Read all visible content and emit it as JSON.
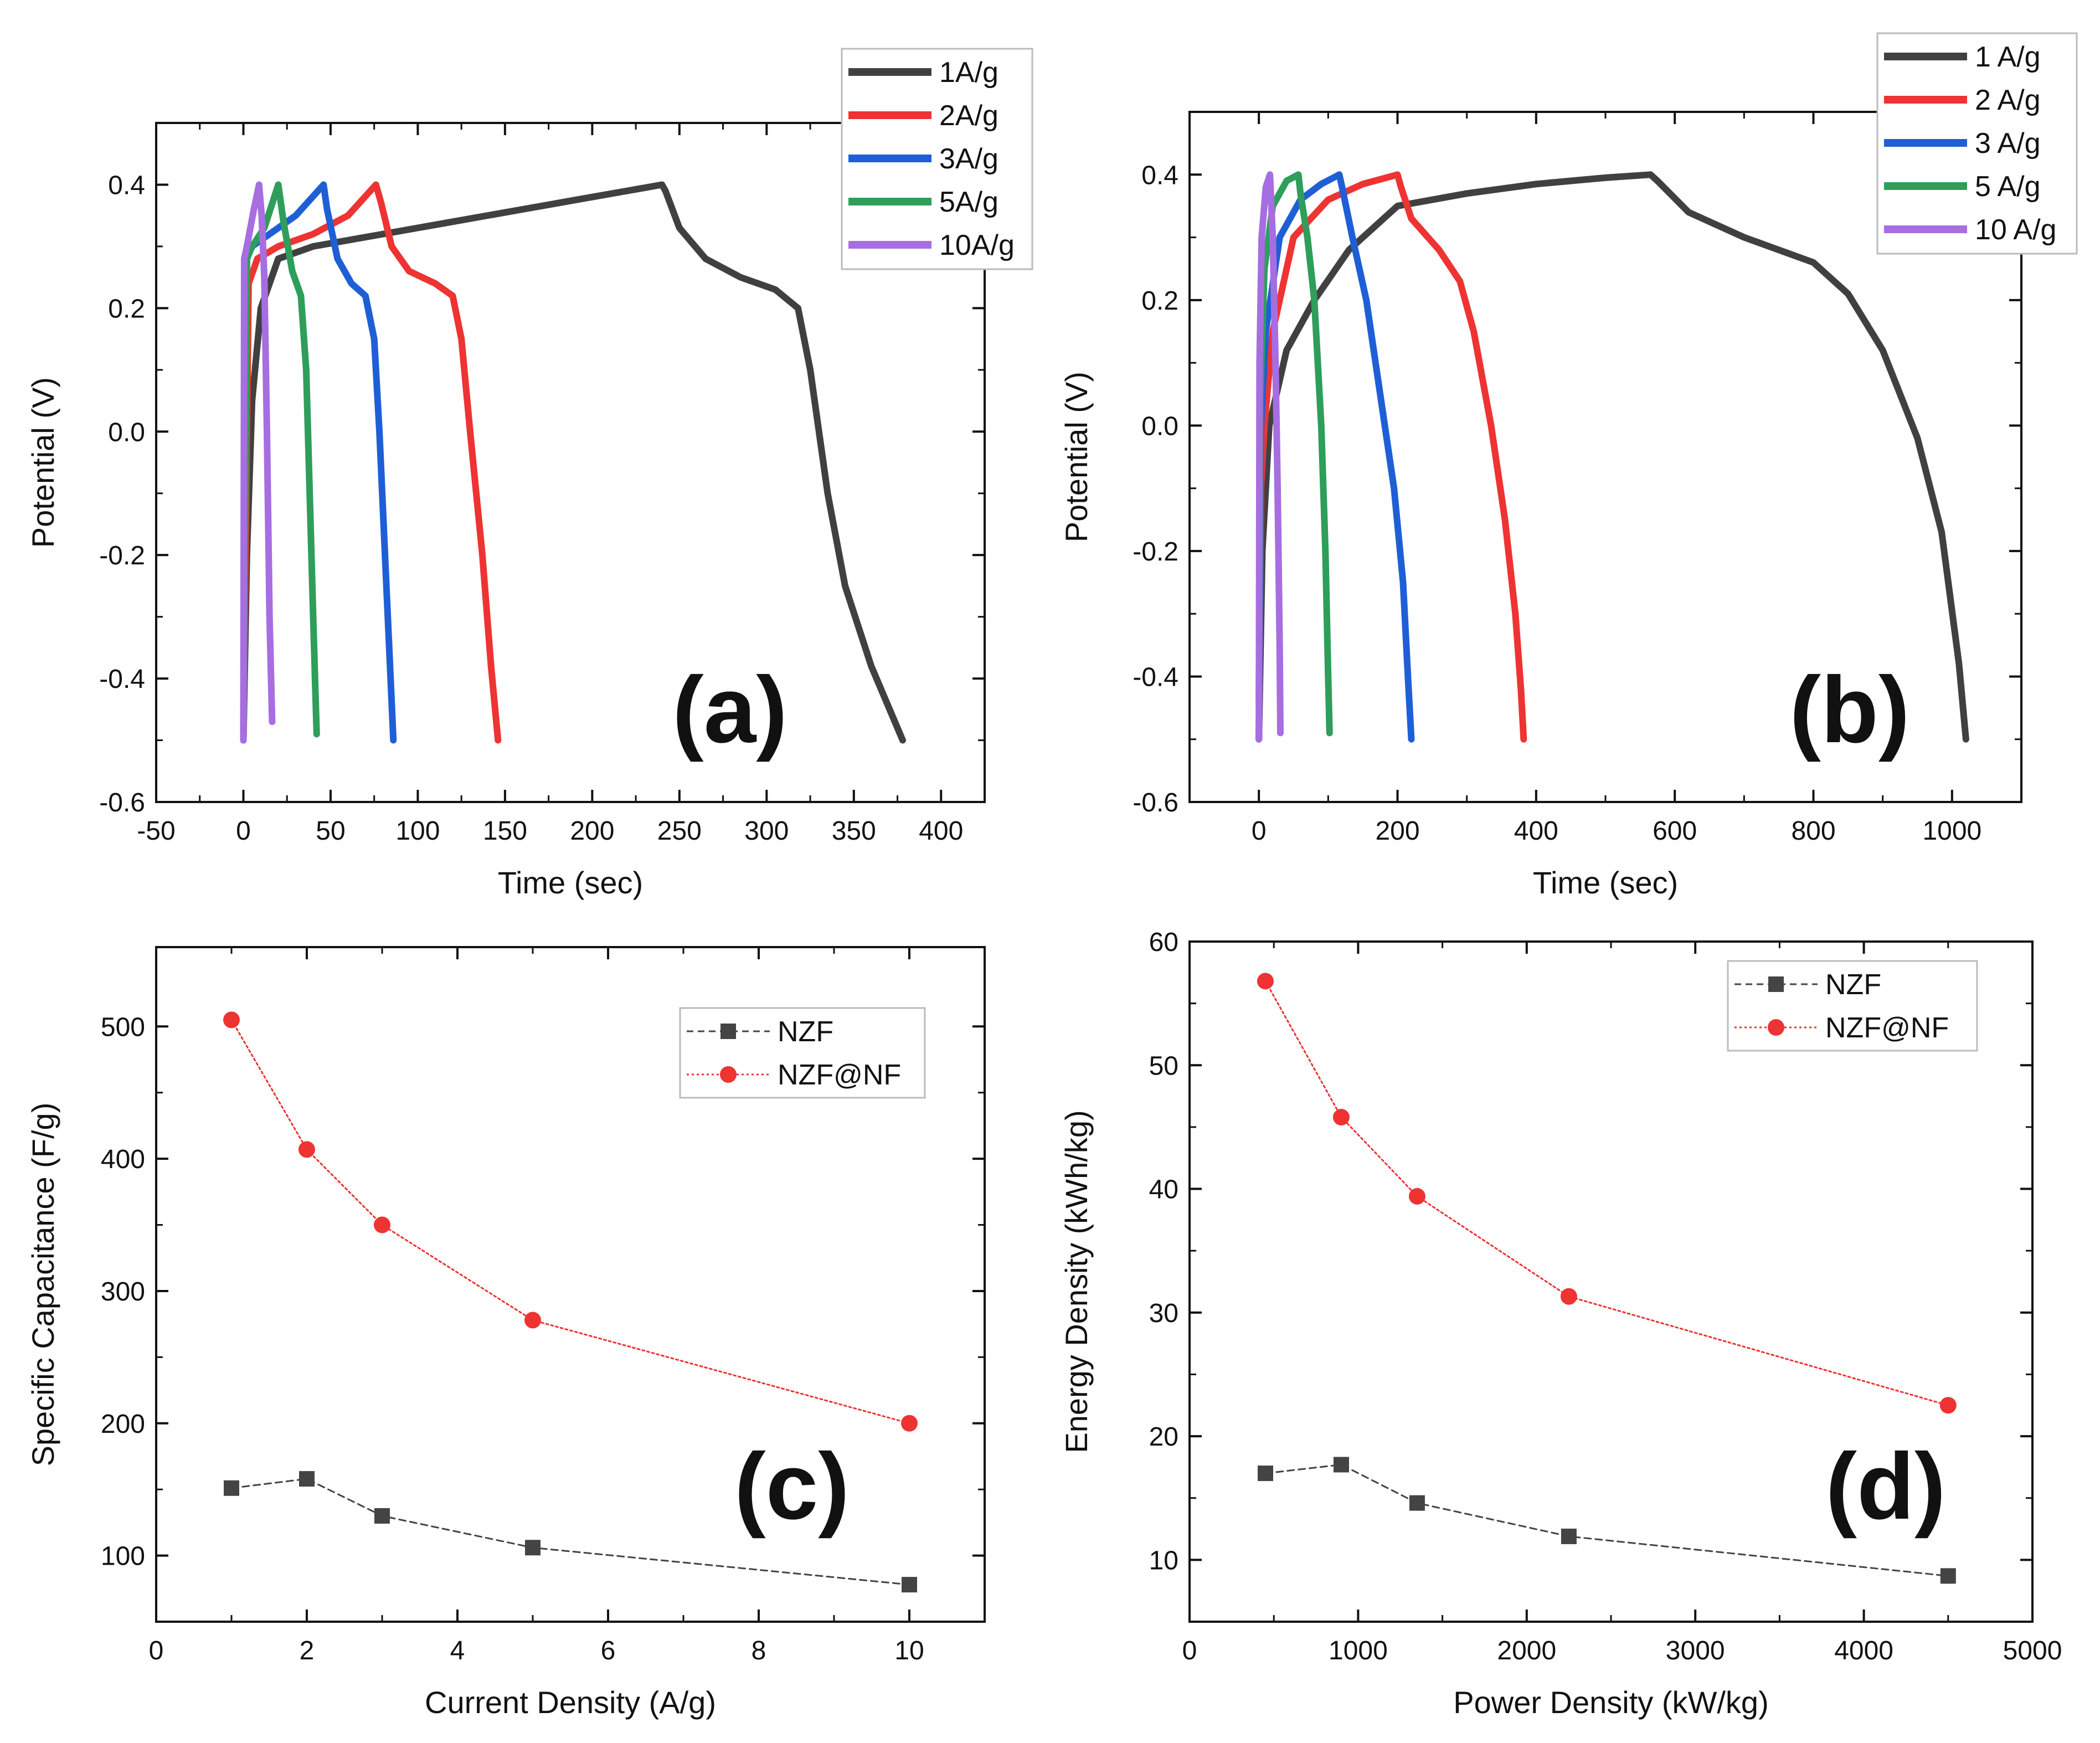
{
  "chart_data": [
    {
      "panel": "a",
      "type": "line",
      "panel_label": "(a)",
      "xlabel": "Time (sec)",
      "ylabel": "Potential (V)",
      "xlim": [
        -50,
        425
      ],
      "ylim": [
        -0.6,
        0.5
      ],
      "xticks": [
        -50,
        0,
        50,
        100,
        150,
        200,
        250,
        300,
        350,
        400
      ],
      "yticks": [
        -0.6,
        -0.4,
        -0.2,
        0.0,
        0.2,
        0.4
      ],
      "ytick_labels": [
        "-0.6",
        "-0.4",
        "-0.2",
        "0.0",
        "0.2",
        "0.4"
      ],
      "grid": false,
      "legend_position": "top-right",
      "series": [
        {
          "name": "1A/g",
          "color": "#404040",
          "x": [
            0,
            2,
            5,
            10,
            20,
            40,
            80,
            120,
            160,
            200,
            240,
            242,
            250,
            265,
            285,
            305,
            318,
            325,
            335,
            345,
            360,
            378
          ],
          "y": [
            -0.5,
            -0.2,
            0.05,
            0.2,
            0.28,
            0.3,
            0.32,
            0.34,
            0.36,
            0.38,
            0.4,
            0.39,
            0.33,
            0.28,
            0.25,
            0.23,
            0.2,
            0.1,
            -0.1,
            -0.25,
            -0.38,
            -0.5
          ]
        },
        {
          "name": "2A/g",
          "color": "#ee3333",
          "x": [
            0,
            3,
            8,
            20,
            40,
            60,
            76,
            79,
            85,
            95,
            110,
            120,
            125,
            130,
            137,
            142,
            146
          ],
          "y": [
            -0.5,
            0.24,
            0.28,
            0.3,
            0.32,
            0.35,
            0.4,
            0.37,
            0.3,
            0.26,
            0.24,
            0.22,
            0.15,
            0.0,
            -0.2,
            -0.38,
            -0.5
          ]
        },
        {
          "name": "3A/g",
          "color": "#1f5fd6",
          "x": [
            0,
            2,
            5,
            15,
            30,
            46,
            48,
            54,
            62,
            70,
            75,
            78,
            82,
            86
          ],
          "y": [
            -0.5,
            0.28,
            0.3,
            0.32,
            0.35,
            0.4,
            0.36,
            0.28,
            0.24,
            0.22,
            0.15,
            0.0,
            -0.25,
            -0.5
          ]
        },
        {
          "name": "5A/g",
          "color": "#2e9e5a",
          "x": [
            0,
            2,
            5,
            12,
            20,
            23,
            28,
            33,
            36,
            38,
            40,
            42
          ],
          "y": [
            -0.5,
            0.28,
            0.3,
            0.33,
            0.4,
            0.34,
            0.26,
            0.22,
            0.1,
            -0.1,
            -0.3,
            -0.49
          ]
        },
        {
          "name": "10A/g",
          "color": "#a66ee0",
          "x": [
            0,
            0.5,
            2,
            6,
            9,
            10.5,
            12,
            13.5,
            15,
            16.5
          ],
          "y": [
            -0.5,
            0.28,
            0.3,
            0.36,
            0.4,
            0.35,
            0.25,
            0.0,
            -0.3,
            -0.47
          ]
        }
      ]
    },
    {
      "panel": "b",
      "type": "line",
      "panel_label": "(b)",
      "xlabel": "Time (sec)",
      "ylabel": "Potential (V)",
      "xlim": [
        -100,
        1100
      ],
      "ylim": [
        -0.6,
        0.5
      ],
      "xticks": [
        0,
        200,
        400,
        600,
        800,
        1000
      ],
      "yticks": [
        -0.6,
        -0.4,
        -0.2,
        0.0,
        0.2,
        0.4
      ],
      "ytick_labels": [
        "-0.6",
        "-0.4",
        "-0.2",
        "0.0",
        "0.2",
        "0.4"
      ],
      "grid": false,
      "legend_position": "top-right",
      "series": [
        {
          "name": "1 A/g",
          "color": "#404040",
          "x": [
            0,
            5,
            15,
            40,
            80,
            130,
            200,
            300,
            400,
            500,
            565,
            575,
            620,
            700,
            800,
            850,
            900,
            950,
            985,
            1010,
            1020
          ],
          "y": [
            -0.5,
            -0.2,
            0.0,
            0.12,
            0.2,
            0.28,
            0.35,
            0.37,
            0.385,
            0.395,
            0.4,
            0.39,
            0.34,
            0.3,
            0.26,
            0.21,
            0.12,
            -0.02,
            -0.17,
            -0.38,
            -0.5
          ]
        },
        {
          "name": "2 A/g",
          "color": "#ee3333",
          "x": [
            0,
            3,
            8,
            20,
            50,
            100,
            150,
            200,
            205,
            220,
            260,
            290,
            310,
            335,
            355,
            370,
            378,
            382
          ],
          "y": [
            -0.5,
            -0.1,
            0.0,
            0.15,
            0.3,
            0.36,
            0.385,
            0.4,
            0.38,
            0.33,
            0.28,
            0.23,
            0.15,
            0.0,
            -0.15,
            -0.3,
            -0.42,
            -0.5
          ]
        },
        {
          "name": "3 A/g",
          "color": "#1f5fd6",
          "x": [
            0,
            3,
            10,
            30,
            60,
            90,
            116,
            120,
            135,
            155,
            175,
            195,
            208,
            215,
            220
          ],
          "y": [
            -0.5,
            0.0,
            0.15,
            0.3,
            0.36,
            0.385,
            0.4,
            0.38,
            0.3,
            0.2,
            0.05,
            -0.1,
            -0.25,
            -0.4,
            -0.5
          ]
        },
        {
          "name": "5 A/g",
          "color": "#2e9e5a",
          "x": [
            0,
            2,
            8,
            20,
            40,
            57,
            60,
            70,
            80,
            90,
            96,
            100,
            102
          ],
          "y": [
            -0.44,
            0.05,
            0.25,
            0.35,
            0.39,
            0.4,
            0.37,
            0.3,
            0.2,
            0.0,
            -0.2,
            -0.4,
            -0.49
          ]
        },
        {
          "name": "10 A/g",
          "color": "#a66ee0",
          "x": [
            0,
            1,
            4,
            10,
            16,
            20,
            24,
            27,
            30,
            31
          ],
          "y": [
            -0.5,
            0.1,
            0.3,
            0.38,
            0.4,
            0.3,
            0.1,
            -0.1,
            -0.35,
            -0.49
          ]
        }
      ]
    },
    {
      "panel": "c",
      "type": "line",
      "panel_label": "(c)",
      "xlabel": "Current Density (A/g)",
      "ylabel": "Specific Capacitance (F/g)",
      "xlim": [
        0,
        11
      ],
      "ylim": [
        50,
        560
      ],
      "xticks": [
        0,
        2,
        4,
        6,
        8,
        10
      ],
      "yticks": [
        100,
        200,
        300,
        400,
        500
      ],
      "grid": false,
      "legend_position": "top-right",
      "series": [
        {
          "name": "NZF",
          "color": "#444444",
          "marker": "square",
          "line": "dashed",
          "x": [
            1,
            2,
            3,
            5,
            10
          ],
          "y": [
            151,
            158,
            130,
            106,
            78
          ]
        },
        {
          "name": "NZF@NF",
          "color": "#ee3333",
          "marker": "circle",
          "line": "dotted",
          "x": [
            1,
            2,
            3,
            5,
            10
          ],
          "y": [
            505,
            407,
            350,
            278,
            200
          ]
        }
      ]
    },
    {
      "panel": "d",
      "type": "line",
      "panel_label": "(d)",
      "xlabel": "Power Density (kW/kg)",
      "ylabel": "Energy Density (kWh/kg)",
      "xlim": [
        0,
        5000
      ],
      "ylim": [
        5,
        60
      ],
      "xticks": [
        0,
        1000,
        2000,
        3000,
        4000,
        5000
      ],
      "yticks": [
        10,
        20,
        30,
        40,
        50,
        60
      ],
      "grid": false,
      "legend_position": "top-right",
      "series": [
        {
          "name": "NZF",
          "color": "#444444",
          "marker": "square",
          "line": "dashed",
          "x": [
            450,
            900,
            1350,
            2250,
            4500
          ],
          "y": [
            17.0,
            17.7,
            14.6,
            11.9,
            8.7
          ]
        },
        {
          "name": "NZF@NF",
          "color": "#ee3333",
          "marker": "circle",
          "line": "dotted",
          "x": [
            450,
            900,
            1350,
            2250,
            4500
          ],
          "y": [
            56.8,
            45.8,
            39.4,
            31.3,
            22.5
          ]
        }
      ]
    }
  ]
}
